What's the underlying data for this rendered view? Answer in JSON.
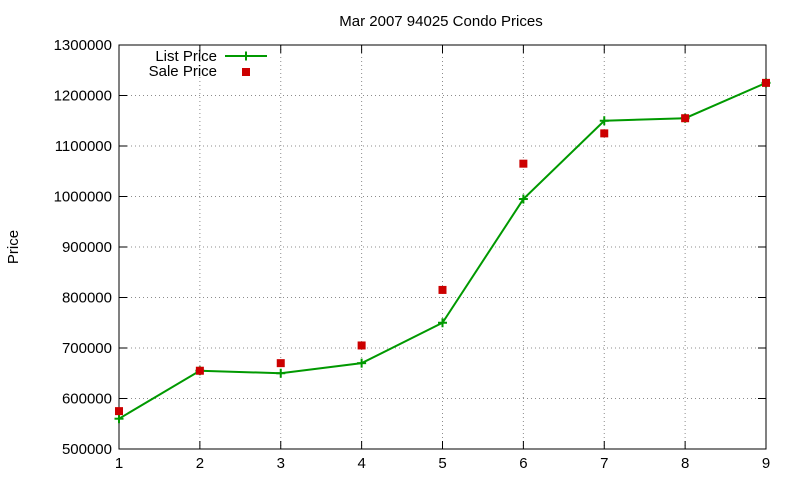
{
  "chart_data": {
    "type": "line",
    "title": "Mar 2007 94025 Condo Prices",
    "xlabel": "",
    "ylabel": "Price",
    "xlim": [
      1,
      9
    ],
    "ylim": [
      500000,
      1300000
    ],
    "x_ticks": [
      1,
      2,
      3,
      4,
      5,
      6,
      7,
      8,
      9
    ],
    "y_ticks": [
      500000,
      600000,
      700000,
      800000,
      900000,
      1000000,
      1100000,
      1200000,
      1300000
    ],
    "grid": true,
    "legend_position": "top-left",
    "series": [
      {
        "name": "List Price",
        "style": "line+cross",
        "color": "#009900",
        "x": [
          1,
          2,
          3,
          4,
          5,
          6,
          7,
          8,
          9
        ],
        "values": [
          560000,
          655000,
          650000,
          670000,
          750000,
          995000,
          1150000,
          1155000,
          1225000
        ]
      },
      {
        "name": "Sale Price",
        "style": "square",
        "color": "#cc0000",
        "x": [
          1,
          2,
          3,
          4,
          5,
          6,
          7,
          8,
          9
        ],
        "values": [
          575000,
          655000,
          670000,
          705000,
          815000,
          1065000,
          1125000,
          1155000,
          1225000
        ]
      }
    ]
  }
}
